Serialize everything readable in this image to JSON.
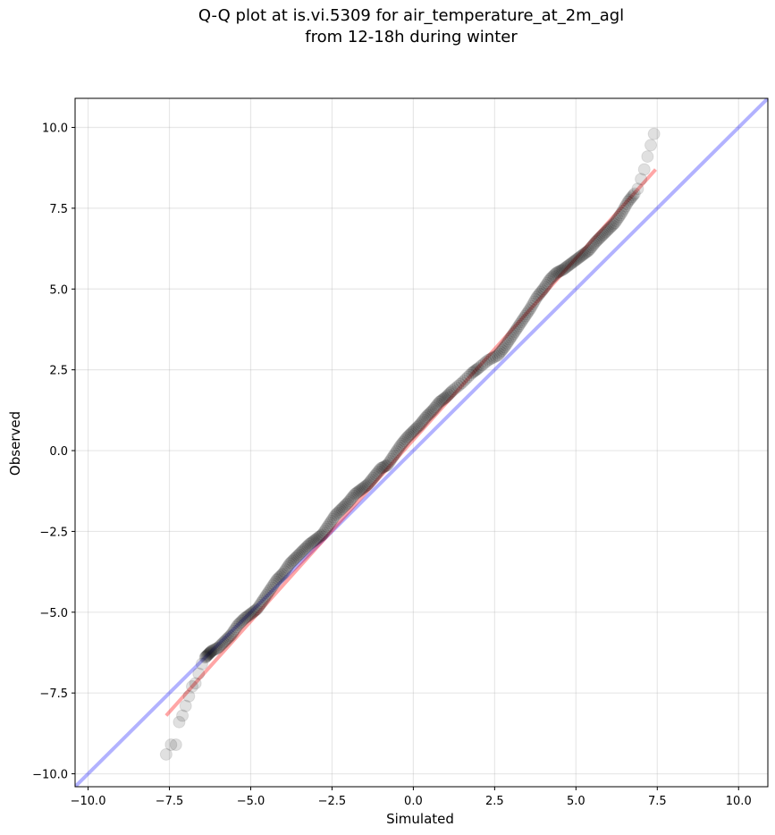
{
  "chart_data": {
    "type": "scatter",
    "title": "Q-Q plot at is.vi.5309 for air_temperature_at_2m_agl\nfrom 12-18h during winter",
    "xlabel": "Simulated",
    "ylabel": "Observed",
    "xlim": [
      -10.4,
      10.9
    ],
    "ylim": [
      -10.4,
      10.9
    ],
    "x_ticks": [
      -10.0,
      -7.5,
      -5.0,
      -2.5,
      0.0,
      2.5,
      5.0,
      7.5,
      10.0
    ],
    "y_ticks": [
      -10.0,
      -7.5,
      -5.0,
      -2.5,
      0.0,
      2.5,
      5.0,
      7.5,
      10.0
    ],
    "x_tick_labels": [
      "−10.0",
      "−7.5",
      "−5.0",
      "−2.5",
      "0.0",
      "2.5",
      "5.0",
      "7.5",
      "10.0"
    ],
    "y_tick_labels": [
      "−10.0",
      "−7.5",
      "−5.0",
      "−2.5",
      "0.0",
      "2.5",
      "5.0",
      "7.5",
      "10.0"
    ],
    "grid": true,
    "series": [
      {
        "kind": "quantile points",
        "color": "#000000",
        "alpha": 0.12,
        "x": [
          -7.6,
          -7.45,
          -7.3,
          -7.2,
          -7.1,
          -7.0,
          -6.9,
          -6.8,
          -6.7,
          -6.6,
          -6.5,
          -6.4,
          -6.3,
          -6.2,
          -6.0,
          -5.8,
          -5.6,
          -5.4,
          -5.2,
          -5.0,
          -4.8,
          -4.6,
          -4.4,
          -4.2,
          -4.0,
          -3.8,
          -3.6,
          -3.4,
          -3.2,
          -3.0,
          -2.8,
          -2.6,
          -2.4,
          -2.2,
          -2.0,
          -1.8,
          -1.6,
          -1.4,
          -1.2,
          -1.0,
          -0.8,
          -0.6,
          -0.4,
          -0.2,
          0.0,
          0.2,
          0.4,
          0.6,
          0.8,
          1.0,
          1.2,
          1.5,
          1.8,
          2.0,
          2.3,
          2.6,
          2.8,
          3.0,
          3.2,
          3.4,
          3.6,
          3.8,
          4.0,
          4.2,
          4.4,
          4.6,
          4.8,
          5.0,
          5.2,
          5.4,
          5.6,
          5.8,
          6.0,
          6.2,
          6.4,
          6.6,
          6.8,
          6.9,
          7.0,
          7.1,
          7.2,
          7.3,
          7.4
        ],
        "y": [
          -9.4,
          -9.1,
          -9.1,
          -8.4,
          -8.2,
          -7.9,
          -7.6,
          -7.3,
          -7.2,
          -6.9,
          -6.6,
          -6.4,
          -6.3,
          -6.2,
          -6.1,
          -5.9,
          -5.7,
          -5.4,
          -5.2,
          -5.05,
          -4.9,
          -4.6,
          -4.3,
          -4.0,
          -3.8,
          -3.5,
          -3.3,
          -3.1,
          -2.9,
          -2.75,
          -2.6,
          -2.3,
          -2.0,
          -1.8,
          -1.6,
          -1.35,
          -1.2,
          -1.05,
          -0.8,
          -0.55,
          -0.45,
          -0.15,
          0.15,
          0.4,
          0.6,
          0.8,
          1.05,
          1.25,
          1.5,
          1.65,
          1.85,
          2.1,
          2.4,
          2.55,
          2.8,
          2.95,
          3.2,
          3.5,
          3.8,
          4.1,
          4.4,
          4.75,
          5.0,
          5.3,
          5.5,
          5.6,
          5.75,
          5.9,
          6.05,
          6.2,
          6.45,
          6.65,
          6.85,
          7.05,
          7.35,
          7.7,
          7.95,
          8.1,
          8.4,
          8.7,
          9.1,
          9.45,
          9.8
        ]
      },
      {
        "kind": "fit line",
        "color": "#ff0000",
        "alpha": 0.35,
        "x": [
          -7.6,
          7.45
        ],
        "y": [
          -8.2,
          8.7
        ]
      },
      {
        "kind": "1:1 line",
        "color": "#0000ff",
        "alpha": 0.3,
        "x": [
          -10.4,
          10.9
        ],
        "y": [
          -10.4,
          10.9
        ]
      }
    ]
  }
}
